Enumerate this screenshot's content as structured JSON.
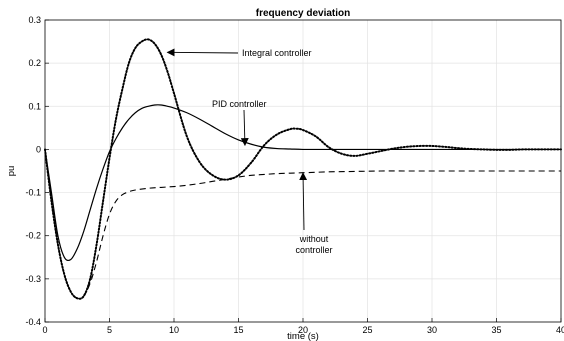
{
  "chart_data": {
    "type": "line",
    "title": "frequency deviation",
    "xlabel": "time (s)",
    "ylabel": "pu",
    "xlim": [
      0,
      40
    ],
    "ylim": [
      -0.4,
      0.3
    ],
    "xticks": [
      0,
      5,
      10,
      15,
      20,
      25,
      30,
      35,
      40
    ],
    "yticks": [
      -0.4,
      -0.3,
      -0.2,
      -0.1,
      0,
      0.1,
      0.2,
      0.3
    ],
    "xtick_labels": [
      "0",
      "5",
      "10",
      "15",
      "20",
      "25",
      "30",
      "35",
      "40"
    ],
    "ytick_labels": [
      "-0.4",
      "-0.3",
      "-0.2",
      "-0.1",
      "0",
      "0.1",
      "0.2",
      "0.3"
    ],
    "grid": true,
    "series": [
      {
        "style": "dotted",
        "x": [
          0,
          0.5,
          1,
          1.5,
          2,
          2.5,
          3,
          3.5,
          4,
          4.5,
          5,
          5.5,
          6,
          6.5,
          7,
          7.5,
          8,
          8.5,
          9,
          9.5,
          10,
          11,
          12,
          13,
          14,
          15,
          16,
          17,
          18,
          19,
          19.5,
          20,
          21,
          22,
          23,
          24,
          25,
          26,
          27,
          28,
          29,
          30,
          31,
          32,
          33,
          34,
          35,
          36,
          37,
          38,
          39,
          40
        ],
        "y": [
          0,
          -0.12,
          -0.22,
          -0.29,
          -0.33,
          -0.345,
          -0.34,
          -0.3,
          -0.22,
          -0.12,
          -0.02,
          0.07,
          0.14,
          0.2,
          0.235,
          0.25,
          0.255,
          0.245,
          0.22,
          0.18,
          0.13,
          0.03,
          -0.03,
          -0.06,
          -0.07,
          -0.06,
          -0.03,
          0.01,
          0.035,
          0.047,
          0.048,
          0.045,
          0.03,
          0.005,
          -0.01,
          -0.015,
          -0.01,
          -0.004,
          0.002,
          0.006,
          0.008,
          0.008,
          0.006,
          0.003,
          0.001,
          0,
          -0.001,
          -0.001,
          0,
          0,
          0,
          0
        ]
      },
      {
        "style": "solid",
        "x": [
          0,
          0.5,
          1,
          1.5,
          2,
          2.5,
          3,
          3.5,
          4,
          4.5,
          5,
          5.5,
          6,
          6.5,
          7,
          7.5,
          8,
          8.5,
          9,
          9.5,
          10,
          11,
          12,
          13,
          14,
          15,
          16,
          17,
          18,
          19,
          20,
          22,
          24,
          26,
          28,
          30,
          32,
          34,
          36,
          38,
          40
        ],
        "y": [
          0,
          -0.1,
          -0.2,
          -0.25,
          -0.255,
          -0.23,
          -0.19,
          -0.14,
          -0.09,
          -0.045,
          -0.005,
          0.025,
          0.05,
          0.07,
          0.085,
          0.095,
          0.1,
          0.103,
          0.103,
          0.1,
          0.096,
          0.085,
          0.07,
          0.053,
          0.036,
          0.022,
          0.012,
          0.005,
          0.002,
          0.001,
          0,
          0,
          0,
          0,
          0,
          0,
          0,
          0,
          0,
          0,
          0
        ]
      },
      {
        "style": "dashed",
        "x": [
          0,
          0.5,
          1,
          1.5,
          2,
          2.5,
          3,
          3.5,
          4,
          4.5,
          5,
          5.5,
          6,
          6.5,
          7,
          8,
          9,
          10,
          11,
          12,
          13,
          14,
          15,
          16,
          17,
          18,
          19,
          20,
          22,
          24,
          26,
          28,
          30,
          32,
          34,
          36,
          38,
          40
        ],
        "y": [
          0,
          -0.12,
          -0.22,
          -0.29,
          -0.33,
          -0.345,
          -0.34,
          -0.31,
          -0.26,
          -0.2,
          -0.15,
          -0.12,
          -0.105,
          -0.098,
          -0.094,
          -0.09,
          -0.088,
          -0.086,
          -0.083,
          -0.079,
          -0.074,
          -0.069,
          -0.064,
          -0.06,
          -0.058,
          -0.056,
          -0.055,
          -0.054,
          -0.052,
          -0.051,
          -0.05,
          -0.05,
          -0.05,
          -0.05,
          -0.05,
          -0.05,
          -0.05,
          -0.05
        ]
      }
    ],
    "annotations": [
      {
        "text": "Integral controller",
        "lines": [
          "Integral controller"
        ],
        "arrow_to": [
          9.5,
          0.225
        ]
      },
      {
        "text": "PID controller",
        "lines": [
          "PID controller"
        ],
        "arrow_to": [
          15.5,
          0.01
        ]
      },
      {
        "text": "without controller",
        "lines": [
          "without",
          "controller"
        ],
        "arrow_to": [
          20,
          -0.055
        ]
      }
    ]
  }
}
